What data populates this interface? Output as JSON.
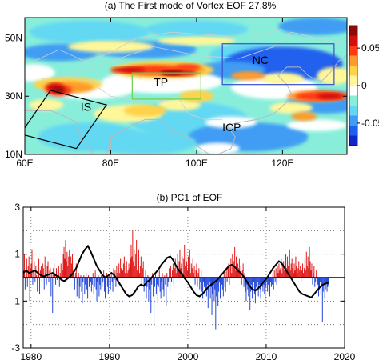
{
  "chart_data": [
    {
      "type": "heatmap",
      "title": "(a) The First mode of Vortex EOF  27.8%",
      "x_ticks": [
        "60E",
        "80E",
        "100E",
        "120E"
      ],
      "x_tick_values": [
        60,
        80,
        100,
        120
      ],
      "y_ticks": [
        "10N",
        "30N",
        "50N"
      ],
      "y_tick_values": [
        10,
        30,
        50
      ],
      "xlim": [
        60,
        135
      ],
      "ylim": [
        10,
        57
      ],
      "colorbar": {
        "ticks": [
          "0.05",
          "0",
          "-0.05"
        ],
        "tick_values": [
          0.05,
          0,
          -0.05
        ],
        "range": [
          -0.08,
          0.08
        ],
        "colors": [
          "#1228c8",
          "#2060ee",
          "#3f9df3",
          "#64d8f2",
          "#88eeda",
          "#ffffff",
          "#fff79a",
          "#ffd24a",
          "#ff9b2a",
          "#ff3a14",
          "#d20f0f",
          "#8a0a0a"
        ]
      },
      "region_labels": [
        "NC",
        "TP",
        "IS",
        "ICP"
      ],
      "regions": [
        {
          "name": "NC",
          "lon": [
            106,
            132
          ],
          "lat": [
            34,
            48
          ],
          "color": "#3a4fcf"
        },
        {
          "name": "TP",
          "lon": [
            85,
            101
          ],
          "lat": [
            29,
            38
          ],
          "color": "#6fcf4a"
        },
        {
          "name": "IS",
          "corners": [
            [
              66,
              32
            ],
            [
              79,
              27
            ],
            [
              72,
              12
            ],
            [
              59,
              17
            ]
          ],
          "color": "#000000"
        }
      ]
    },
    {
      "type": "bar",
      "title": "(b) PC1 of EOF",
      "xlim": [
        1979,
        2020
      ],
      "ylim": [
        -3,
        3
      ],
      "x_ticks": [
        "1980",
        "1990",
        "2000",
        "2010",
        "2020"
      ],
      "x_tick_values": [
        1980,
        1990,
        2000,
        2010,
        2020
      ],
      "y_ticks": [
        "3",
        "1",
        "-1",
        "-3"
      ],
      "y_tick_values": [
        3,
        1,
        -1,
        -3
      ],
      "grid": true,
      "positive_color": "#e01b1b",
      "negative_color": "#2448d8",
      "line_color": "#000000",
      "series": [
        {
          "name": "PC1",
          "values": [
            0.3,
            1.0,
            -0.5,
            0.2,
            0.8,
            -0.4,
            0.5,
            0.9,
            -1.0,
            0.4,
            0.6,
            1.2,
            -0.3,
            0.3,
            0.7,
            -0.2,
            0.5,
            0.1,
            -0.6,
            0.2,
            0.8,
            -0.7,
            0.3,
            0.5,
            -0.2,
            0.6,
            0.4,
            -0.5,
            0.9,
            0.2,
            -0.3,
            0.5,
            0.7,
            -0.2,
            0.3,
            0.4,
            -0.8,
            0.2,
            -1.5,
            0.4,
            0.6,
            0.2,
            -0.3,
            0.4,
            -0.1,
            0.3,
            0.5,
            -0.4,
            0.2,
            0.6,
            -0.1,
            0.3,
            1.0,
            1.3,
            0.8,
            1.6,
            0.7,
            1.1,
            0.5,
            0.9,
            1.2,
            0.4,
            0.9,
            0.6,
            1.0,
            0.3,
            0.7,
            -0.5,
            0.2,
            0.6,
            -0.8,
            -0.3,
            0.2,
            -0.9,
            -0.4,
            0.1,
            -0.6,
            -1.1,
            -0.2,
            0.1,
            -0.7,
            -0.3,
            0.2,
            -0.5,
            -0.9,
            0.1,
            -0.4,
            -1.2,
            -0.2,
            -0.6,
            -0.3,
            0.2,
            -0.7,
            -0.4,
            0.3,
            -0.5,
            -1.0,
            -0.2,
            0.1,
            -0.8,
            -0.3,
            -0.5,
            0.1,
            -0.4,
            -0.2,
            0.3,
            -0.6,
            -0.9,
            -0.1,
            0.2,
            -0.4,
            -0.7,
            0.1,
            -0.3,
            -0.5,
            0.2,
            -0.2,
            -0.6,
            0.4,
            -0.1,
            0.3,
            -0.4,
            0.5,
            0.2,
            -0.3,
            0.6,
            0.2,
            0.8,
            0.4,
            1.1,
            0.3,
            0.6,
            0.9,
            0.2,
            0.5,
            0.7,
            0.2,
            0.3,
            0.6,
            0.4,
            0.8,
            1.4,
            0.9,
            2.0,
            0.7,
            1.2,
            0.5,
            1.0,
            1.6,
            0.3,
            0.8,
            1.2,
            0.2,
            0.5,
            0.9,
            -0.3,
            0.4,
            0.7,
            -0.6,
            -0.2,
            0.3,
            -0.9,
            -0.4,
            0.1,
            -1.0,
            -0.5,
            -0.2,
            -1.5,
            -0.3,
            0.2,
            -0.8,
            -2.0,
            -0.4,
            0.2,
            -0.7,
            -0.3,
            -1.1,
            -0.4,
            0.3,
            -0.6,
            -0.9,
            -0.2,
            0.2,
            -0.5,
            -0.8,
            0.1,
            -0.3,
            -1.2,
            0.2,
            -0.4,
            -0.2,
            0.4,
            -0.6,
            0.5,
            -0.2,
            0.3,
            0.6,
            -0.3,
            0.4,
            0.8,
            0.2,
            0.5,
            1.0,
            0.3,
            0.7,
            1.2,
            0.4,
            0.6,
            0.9,
            0.2,
            0.8,
            1.4,
            0.5,
            1.1,
            0.7,
            0.3,
            0.9,
            0.5,
            1.2,
            0.2,
            0.6,
            0.4,
            0.8,
            0.2,
            0.5,
            -0.3,
            0.3,
            0.6,
            -0.4,
            0.2,
            0.4,
            -0.5,
            -0.2,
            0.3,
            -0.6,
            -0.9,
            -0.2,
            -0.4,
            -1.1,
            -0.5,
            -0.8,
            -0.3,
            -1.3,
            -0.6,
            -0.2,
            -0.9,
            -0.4,
            -1.6,
            -0.7,
            -0.3,
            -1.0,
            -0.5,
            -2.2,
            -0.8,
            -0.4,
            -1.2,
            -0.6,
            -0.2,
            -0.9,
            -1.4,
            -0.3,
            -0.5,
            -0.8,
            0.2,
            -0.4,
            -0.6,
            0.3,
            -0.2,
            0.4,
            0.6,
            -0.3,
            0.5,
            0.8,
            0.2,
            1.0,
            0.4,
            0.7,
            1.3,
            0.3,
            0.9,
            1.1,
            0.6,
            0.4,
            0.8,
            0.2,
            0.5,
            -0.3,
            0.3,
            0.6,
            -0.4,
            0.2,
            -0.6,
            -1.0,
            -0.3,
            -0.5,
            -0.8,
            -0.2,
            -1.4,
            -0.6,
            -0.3,
            -0.9,
            -0.5,
            -0.2,
            -0.7,
            -1.1,
            -0.4,
            -0.6,
            -0.2,
            -0.8,
            -0.3,
            -0.5,
            -0.9,
            -0.2,
            -0.4,
            -0.6,
            -0.3,
            -0.7,
            -1.0,
            -0.4,
            -0.2,
            -0.6,
            -0.3,
            -0.5,
            -0.8,
            -0.2,
            -0.4,
            -0.3,
            0.2,
            -0.5,
            0.3,
            -0.2,
            0.4,
            -0.3,
            0.5,
            0.2,
            0.6,
            0.3,
            0.4,
            0.8,
            0.2,
            0.5,
            0.7,
            0.3,
            0.6,
            1.0,
            0.4,
            0.9,
            0.5,
            0.7,
            1.2,
            0.3,
            0.6,
            0.8,
            0.4,
            0.2,
            0.6,
            0.3,
            0.9,
            0.5,
            0.2,
            0.4,
            0.7,
            0.3,
            0.5,
            -0.2,
            0.3,
            0.6,
            0.2,
            0.4,
            0.8,
            0.3,
            1.1,
            0.5,
            0.9,
            0.4,
            1.3,
            0.7,
            0.3,
            0.6,
            -0.3,
            0.2,
            0.5,
            -0.4,
            -0.2,
            0.3,
            -0.6,
            -0.3,
            -0.8,
            -0.5,
            -0.2,
            -0.7,
            -0.4,
            -1.9,
            -0.6,
            -0.3,
            -0.9,
            -0.5,
            -0.2,
            -0.6,
            -0.4,
            -0.3
          ]
        },
        {
          "name": "smoothed",
          "values": [
            0.2,
            0.3,
            0.2,
            0.25,
            0.3,
            0.2,
            0.1,
            0.05,
            0.1,
            0.15,
            0.2,
            0.1,
            0.05,
            -0.1,
            -0.15,
            -0.05,
            0.05,
            0.2,
            0.4,
            0.7,
            1.0,
            1.2,
            1.35,
            1.1,
            0.8,
            0.5,
            0.3,
            0.1,
            0.0,
            0.1,
            0.2,
            0.1,
            -0.1,
            -0.3,
            -0.5,
            -0.7,
            -0.8,
            -0.75,
            -0.6,
            -0.4,
            -0.3,
            -0.35,
            -0.2,
            -0.1,
            0.05,
            0.2,
            0.35,
            0.55,
            0.7,
            0.85,
            0.9,
            0.75,
            0.5,
            0.3,
            0.15,
            -0.05,
            -0.2,
            -0.4,
            -0.6,
            -0.75,
            -0.8,
            -0.7,
            -0.55,
            -0.4,
            -0.3,
            -0.2,
            -0.1,
            0.05,
            0.2,
            0.35,
            0.5,
            0.55,
            0.45,
            0.3,
            0.2,
            0.05,
            -0.15,
            -0.35,
            -0.5,
            -0.55,
            -0.45,
            -0.3,
            -0.15,
            0.0,
            0.2,
            0.4,
            0.55,
            0.7,
            0.6,
            0.4,
            0.2,
            0.0,
            -0.2,
            -0.4,
            -0.6,
            -0.7,
            -0.75,
            -0.8,
            -0.85,
            -0.7,
            -0.55,
            -0.4,
            -0.3,
            -0.25,
            -0.2
          ]
        }
      ]
    }
  ]
}
